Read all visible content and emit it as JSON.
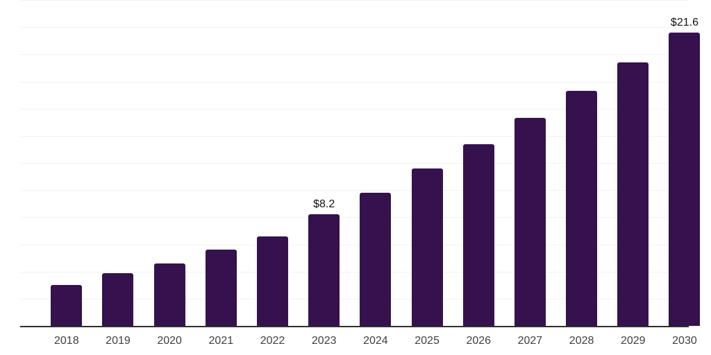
{
  "chart_data": {
    "type": "bar",
    "title": "",
    "xlabel": "",
    "ylabel": "",
    "categories": [
      "2018",
      "2019",
      "2020",
      "2021",
      "2022",
      "2023",
      "2024",
      "2025",
      "2026",
      "2027",
      "2028",
      "2029",
      "2030"
    ],
    "values": [
      3.0,
      3.9,
      4.6,
      5.6,
      6.6,
      8.2,
      9.8,
      11.6,
      13.4,
      15.3,
      17.3,
      19.4,
      21.6
    ],
    "data_labels": {
      "2023": "$8.2",
      "2030": "$21.6"
    },
    "ylim": [
      0,
      24
    ],
    "gridline_step": 2,
    "grid_visible": true,
    "legend_visible": false,
    "colors": {
      "bar": "#35114D",
      "grid": "#f2f2f2",
      "axis": "#2e2e2e",
      "tick_text": "#404040",
      "data_label_text": "#111111",
      "background": "#ffffff"
    }
  }
}
